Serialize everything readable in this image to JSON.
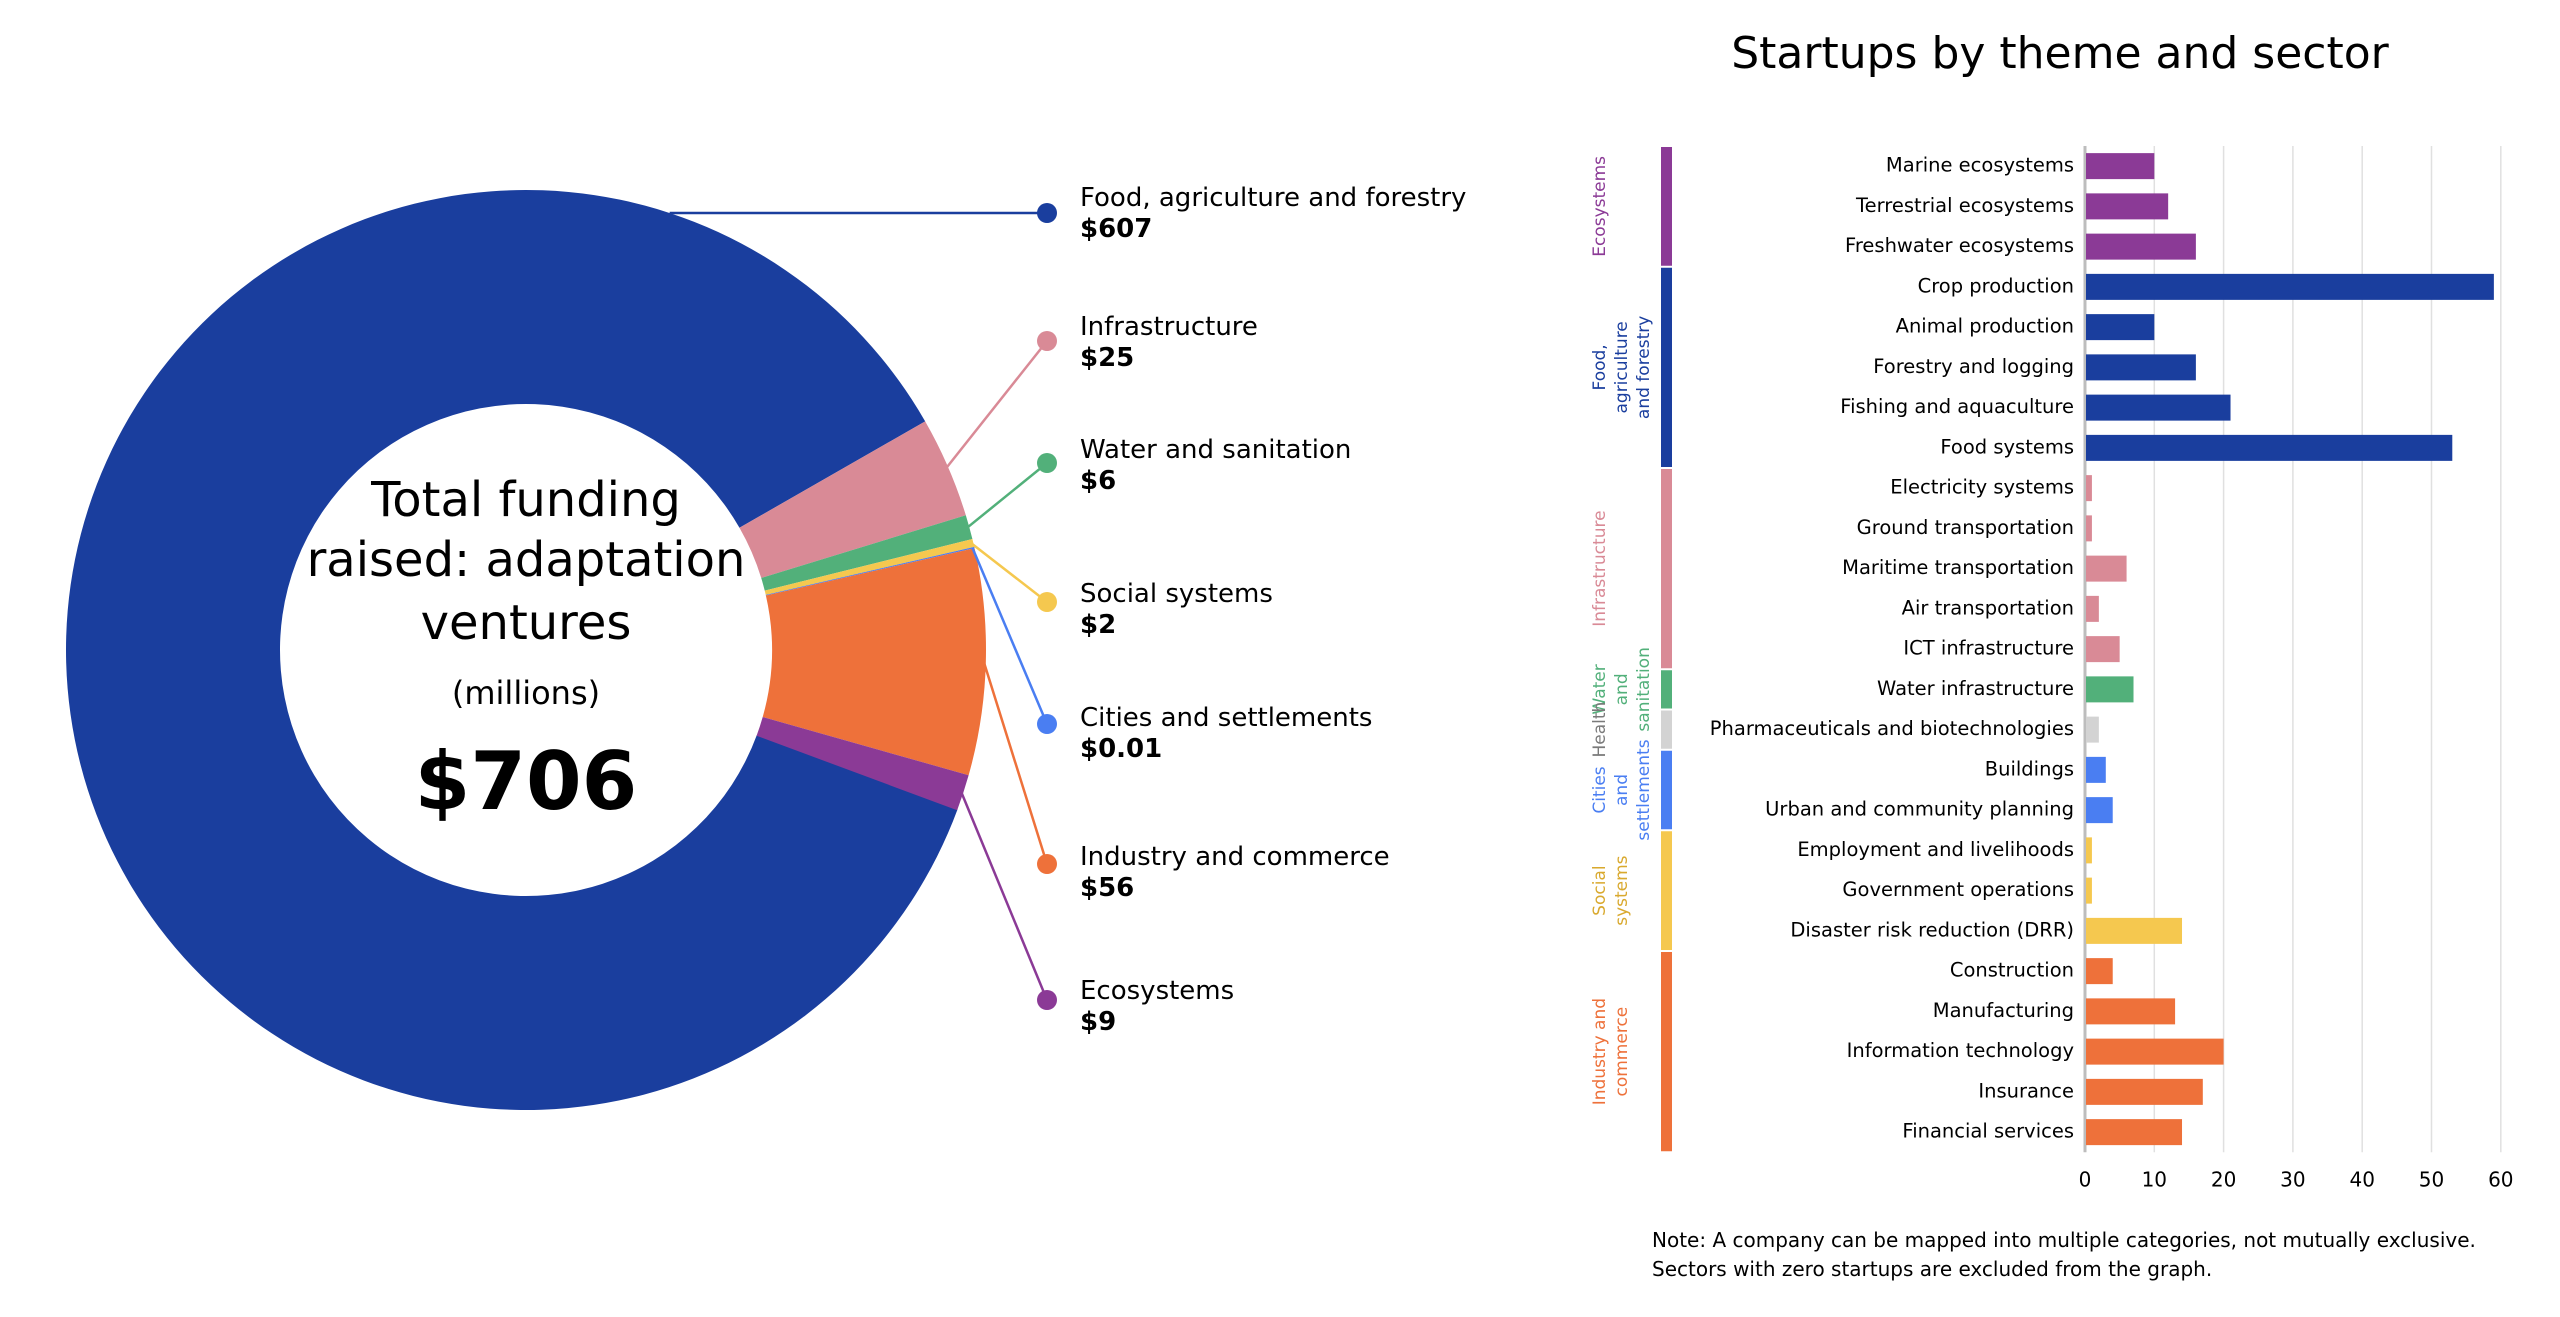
{
  "chart_data": [
    {
      "type": "pie",
      "variant": "donut",
      "center_text": {
        "title": "Total funding raised: adaptation ventures",
        "title_lines": [
          "Total funding",
          "raised: adaptation",
          "ventures"
        ],
        "unit": "(millions)",
        "total": "$706"
      },
      "slices": [
        {
          "name": "Food, agriculture and forestry",
          "value": 607,
          "label": "$607",
          "color": "#1A3E9E"
        },
        {
          "name": "Infrastructure",
          "value": 25,
          "label": "$25",
          "color": "#D98A96"
        },
        {
          "name": "Water and sanitation",
          "value": 6,
          "label": "$6",
          "color": "#52B07A"
        },
        {
          "name": "Social systems",
          "value": 2,
          "label": "$2",
          "color": "#F5C84F"
        },
        {
          "name": "Cities and settlements",
          "value": 0.01,
          "label": "$0.01",
          "color": "#4A7EF2"
        },
        {
          "name": "Industry and commerce",
          "value": 56,
          "label": "$56",
          "color": "#EE713A"
        },
        {
          "name": "Ecosystems",
          "value": 9,
          "label": "$9",
          "color": "#8B3A96"
        }
      ]
    },
    {
      "type": "bar",
      "orientation": "horizontal",
      "title": "Startups by theme and sector",
      "xlabel": "",
      "ylabel": "",
      "xlim": [
        0,
        60
      ],
      "xticks": [
        0,
        10,
        20,
        30,
        40,
        50,
        60
      ],
      "grid": true,
      "groups": [
        {
          "name": "Ecosystems",
          "label_lines": [
            "Ecosystems"
          ],
          "color": "#8B3A96",
          "text_color": "#8B3A96",
          "categories": [
            "Marine ecosystems",
            "Terrestrial ecosystems",
            "Freshwater ecosystems"
          ],
          "values": [
            10,
            12,
            16
          ]
        },
        {
          "name": "Food, agriculture and forestry",
          "label_lines": [
            "Food,",
            "agriculture",
            "and forestry"
          ],
          "color": "#1A3E9E",
          "text_color": "#1A3E9E",
          "categories": [
            "Crop production",
            "Animal production",
            "Forestry and logging",
            "Fishing and aquaculture",
            "Food systems"
          ],
          "values": [
            59,
            10,
            16,
            21,
            53
          ]
        },
        {
          "name": "Infrastructure",
          "label_lines": [
            "Infrastructure"
          ],
          "color": "#D98A96",
          "text_color": "#D98A96",
          "categories": [
            "Electricity systems",
            "Ground transportation",
            "Maritime transportation",
            "Air transportation",
            "ICT infrastructure"
          ],
          "values": [
            1,
            1,
            6,
            2,
            5
          ]
        },
        {
          "name": "Water and sanitation",
          "label_lines": [
            "Water",
            "and",
            "sanitation"
          ],
          "color": "#52B07A",
          "text_color": "#52B07A",
          "categories": [
            "Water infrastructure"
          ],
          "values": [
            7
          ]
        },
        {
          "name": "Health",
          "label_lines": [
            "Health"
          ],
          "color": "#D3D3D3",
          "text_color": "#7A7A7A",
          "categories": [
            "Pharmaceuticals and biotechnologies"
          ],
          "values": [
            2
          ]
        },
        {
          "name": "Cities and settlements",
          "label_lines": [
            "Cities",
            "and",
            "settlements"
          ],
          "color": "#4A7EF2",
          "text_color": "#4A7EF2",
          "categories": [
            "Buildings",
            "Urban and community planning"
          ],
          "values": [
            3,
            4
          ]
        },
        {
          "name": "Social systems",
          "label_lines": [
            "Social",
            "systems"
          ],
          "color": "#F5C84F",
          "text_color": "#D9A92E",
          "categories": [
            "Employment and livelihoods",
            "Government operations",
            "Disaster risk reduction (DRR)"
          ],
          "values": [
            1,
            1,
            14
          ]
        },
        {
          "name": "Industry and commerce",
          "label_lines": [
            "Industry and",
            "commerce"
          ],
          "color": "#EE713A",
          "text_color": "#EE713A",
          "categories": [
            "Construction",
            "Manufacturing",
            "Information technology",
            "Insurance",
            "Financial services"
          ],
          "values": [
            4,
            13,
            20,
            17,
            14
          ]
        }
      ],
      "note_lines": [
        "Note: A company can be mapped into multiple categories, not mutually exclusive.",
        "Sectors with zero startups are excluded from the graph."
      ]
    }
  ]
}
